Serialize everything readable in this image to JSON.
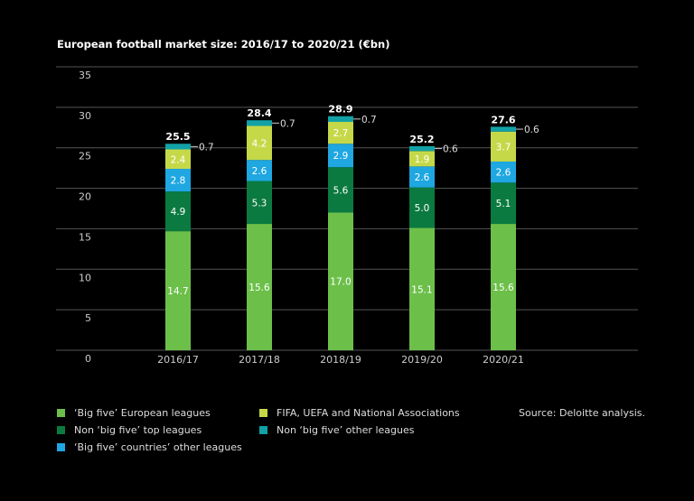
{
  "chart_data": {
    "type": "bar",
    "stacked": true,
    "title": "European football market size: 2016/17 to 2020/21 (€bn)",
    "categories": [
      "2016/17",
      "2017/18",
      "2018/19",
      "2019/20",
      "2020/21"
    ],
    "ylim": [
      0,
      35
    ],
    "yticks": [
      0,
      5,
      10,
      15,
      20,
      25,
      30,
      35
    ],
    "grid": true,
    "legend_position": "bottom",
    "totals": [
      "25.5",
      "28.4",
      "28.9",
      "25.2",
      "27.6"
    ],
    "series": [
      {
        "name": "‘Big five’ European leagues",
        "color": "#6cc04a",
        "values": [
          14.7,
          15.6,
          17.0,
          15.1,
          15.6
        ],
        "labels": [
          "14.7",
          "15.6",
          "17.0",
          "15.1",
          "15.6"
        ]
      },
      {
        "name": "Non ‘big five’ top leagues",
        "color": "#0b7a40",
        "values": [
          4.9,
          5.3,
          5.6,
          5.0,
          5.1
        ],
        "labels": [
          "4.9",
          "5.3",
          "5.6",
          "5.0",
          "5.1"
        ]
      },
      {
        "name": "‘Big five’ countries’ other leagues",
        "color": "#1ea7e1",
        "values": [
          2.8,
          2.6,
          2.9,
          2.6,
          2.6
        ],
        "labels": [
          "2.8",
          "2.6",
          "2.9",
          "2.6",
          "2.6"
        ]
      },
      {
        "name": "FIFA, UEFA and National Associations",
        "color": "#c5d948",
        "values": [
          2.4,
          4.2,
          2.7,
          1.9,
          3.7
        ],
        "labels": [
          "2.4",
          "4.2",
          "2.7",
          "1.9",
          "3.7"
        ]
      },
      {
        "name": "Non ‘big five’ other leagues",
        "color": "#11a1a6",
        "values": [
          0.7,
          0.7,
          0.7,
          0.6,
          0.6
        ],
        "labels": [
          "0.7",
          "0.7",
          "0.7",
          "0.6",
          "0.6"
        ]
      }
    ],
    "source": "Source: Deloitte analysis."
  }
}
